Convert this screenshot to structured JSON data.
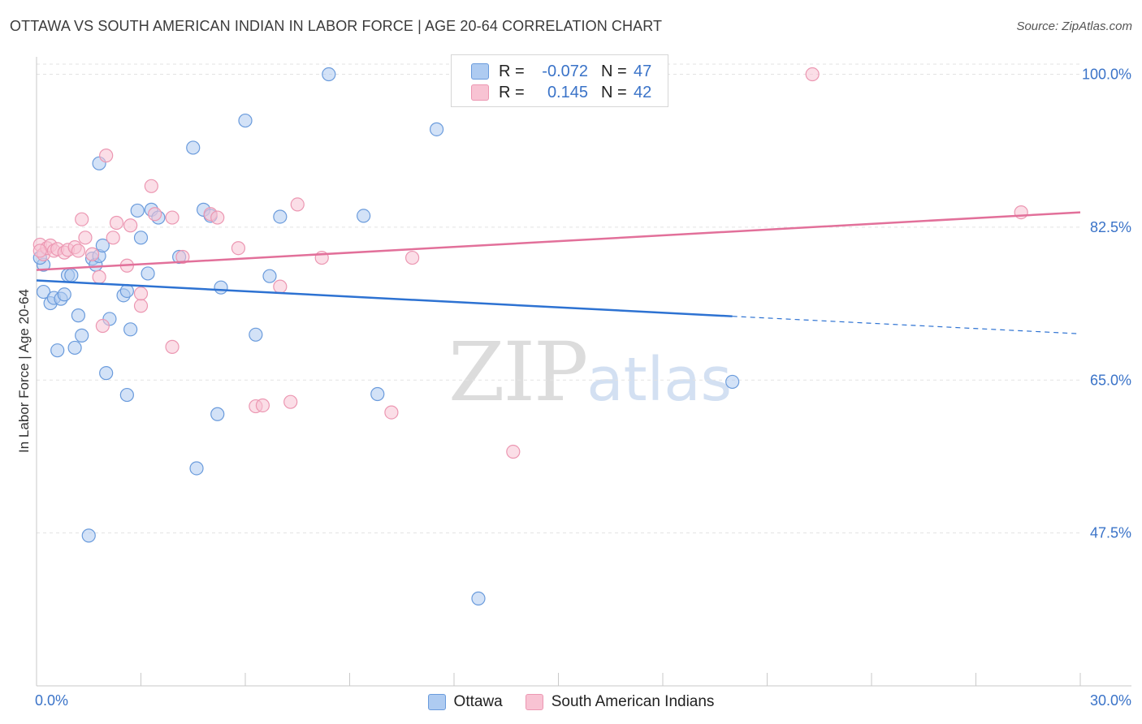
{
  "header": {
    "title": "OTTAWA VS SOUTH AMERICAN INDIAN IN LABOR FORCE | AGE 20-64 CORRELATION CHART",
    "source": "Source: ZipAtlas.com"
  },
  "watermark": {
    "zip": "ZIP",
    "atlas": "atlas"
  },
  "legend": {
    "rows": [
      {
        "r_label": "R =",
        "r_value": "-0.072",
        "n_label": "N =",
        "n_value": "47"
      },
      {
        "r_label": "R =",
        "r_value": "0.145",
        "n_label": "N =",
        "n_value": "42"
      }
    ]
  },
  "colors": {
    "series1_fill": "#aecbf1",
    "series1_stroke": "#6a9bdc",
    "series1_line": "#2d72d2",
    "series2_fill": "#f8c3d3",
    "series2_stroke": "#ec97b2",
    "series2_line": "#e2709a",
    "tick_label": "#3a73c8",
    "grid": "#e3e3e3"
  },
  "chart_data": {
    "type": "scatter",
    "title": "OTTAWA VS SOUTH AMERICAN INDIAN IN LABOR FORCE | AGE 20-64 CORRELATION CHART",
    "xlabel": "",
    "ylabel": "In Labor Force | Age 20-64",
    "xlim": [
      0.0,
      30.0
    ],
    "ylim": [
      30.0,
      102.0
    ],
    "x_tick_labels": [
      {
        "value": 0.0,
        "label": "0.0%"
      },
      {
        "value": 30.0,
        "label": "30.0%"
      }
    ],
    "y_ticks": [
      {
        "value": 100.0,
        "label": "100.0%"
      },
      {
        "value": 82.5,
        "label": "82.5%"
      },
      {
        "value": 65.0,
        "label": "65.0%"
      },
      {
        "value": 47.5,
        "label": "47.5%"
      }
    ],
    "grid": true,
    "legend_position": "top-center",
    "series": [
      {
        "name": "Ottawa",
        "r": -0.072,
        "n": 47,
        "trend": {
          "x0": 0.0,
          "y0": 76.4,
          "x1": 20.0,
          "y1": 72.3,
          "dashed_to": 30.0,
          "dashed_y": 70.3
        },
        "points": [
          [
            0.2,
            78.2
          ],
          [
            0.2,
            75.1
          ],
          [
            0.4,
            73.8
          ],
          [
            0.5,
            74.4
          ],
          [
            0.6,
            68.4
          ],
          [
            0.7,
            74.3
          ],
          [
            0.8,
            74.8
          ],
          [
            0.9,
            77.0
          ],
          [
            1.0,
            77.0
          ],
          [
            1.1,
            68.7
          ],
          [
            1.2,
            72.4
          ],
          [
            1.3,
            70.1
          ],
          [
            1.5,
            47.2
          ],
          [
            1.6,
            78.9
          ],
          [
            1.7,
            78.2
          ],
          [
            1.8,
            79.2
          ],
          [
            1.8,
            89.8
          ],
          [
            1.9,
            80.4
          ],
          [
            2.0,
            65.8
          ],
          [
            2.1,
            72.0
          ],
          [
            2.5,
            74.7
          ],
          [
            2.6,
            75.2
          ],
          [
            2.6,
            63.3
          ],
          [
            2.7,
            70.8
          ],
          [
            2.9,
            84.4
          ],
          [
            3.0,
            81.3
          ],
          [
            3.2,
            77.2
          ],
          [
            3.3,
            84.5
          ],
          [
            3.5,
            83.6
          ],
          [
            4.1,
            79.1
          ],
          [
            4.5,
            91.6
          ],
          [
            4.6,
            54.9
          ],
          [
            4.8,
            84.5
          ],
          [
            5.0,
            83.8
          ],
          [
            5.2,
            61.1
          ],
          [
            5.3,
            75.6
          ],
          [
            6.0,
            94.7
          ],
          [
            6.3,
            70.2
          ],
          [
            6.7,
            76.9
          ],
          [
            7.0,
            83.7
          ],
          [
            8.4,
            100.0
          ],
          [
            9.4,
            83.8
          ],
          [
            9.8,
            63.4
          ],
          [
            11.5,
            93.7
          ],
          [
            12.7,
            40.0
          ],
          [
            20.0,
            64.8
          ],
          [
            0.1,
            79.0
          ]
        ]
      },
      {
        "name": "South American Indians",
        "r": 0.145,
        "n": 42,
        "trend": {
          "x0": 0.0,
          "y0": 77.6,
          "x1": 30.0,
          "y1": 84.2
        },
        "points": [
          [
            0.1,
            80.5
          ],
          [
            0.2,
            79.4
          ],
          [
            0.3,
            80.1
          ],
          [
            0.4,
            80.4
          ],
          [
            0.5,
            79.8
          ],
          [
            0.6,
            80.0
          ],
          [
            0.8,
            79.6
          ],
          [
            0.9,
            79.9
          ],
          [
            1.1,
            80.2
          ],
          [
            1.2,
            79.8
          ],
          [
            1.3,
            83.4
          ],
          [
            1.4,
            81.3
          ],
          [
            1.6,
            79.4
          ],
          [
            1.8,
            76.8
          ],
          [
            1.9,
            71.2
          ],
          [
            2.0,
            90.7
          ],
          [
            2.2,
            81.3
          ],
          [
            2.3,
            83.0
          ],
          [
            2.6,
            78.1
          ],
          [
            2.7,
            82.7
          ],
          [
            3.0,
            73.5
          ],
          [
            3.0,
            74.9
          ],
          [
            3.3,
            87.2
          ],
          [
            3.4,
            84.0
          ],
          [
            3.9,
            83.6
          ],
          [
            3.9,
            68.8
          ],
          [
            4.2,
            79.1
          ],
          [
            5.0,
            84.0
          ],
          [
            5.2,
            83.6
          ],
          [
            5.8,
            80.1
          ],
          [
            6.3,
            62.0
          ],
          [
            6.5,
            62.1
          ],
          [
            7.0,
            75.7
          ],
          [
            7.3,
            62.5
          ],
          [
            7.5,
            85.1
          ],
          [
            8.2,
            79.0
          ],
          [
            10.2,
            61.3
          ],
          [
            10.8,
            79.0
          ],
          [
            13.7,
            56.8
          ],
          [
            22.3,
            100.0
          ],
          [
            28.3,
            84.2
          ],
          [
            0.1,
            79.8
          ]
        ]
      }
    ]
  }
}
